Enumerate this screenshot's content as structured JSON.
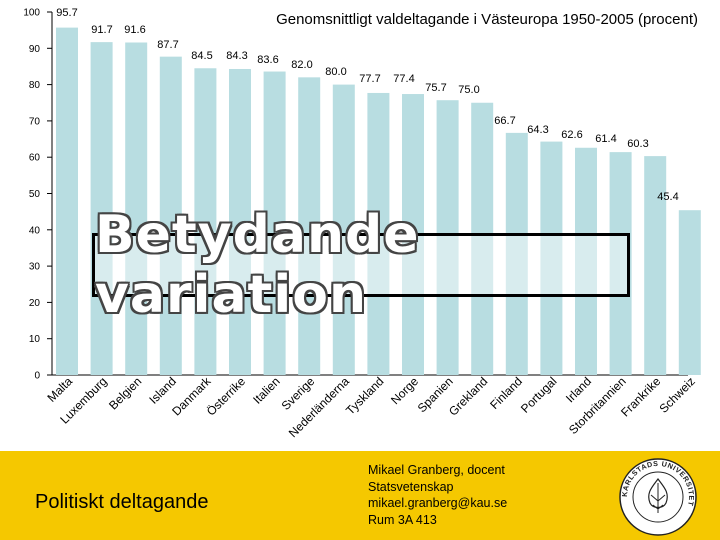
{
  "chart_data": {
    "type": "bar",
    "title": "Genomsnittligt valdeltagande i Västeuropa 1950-2005 (procent)",
    "xlabel": "",
    "ylabel": "",
    "ylim": [
      0,
      100
    ],
    "yticks": [
      0,
      10,
      20,
      30,
      40,
      50,
      60,
      70,
      80,
      90,
      100
    ],
    "grid": false,
    "bar_color": "#b8dde1",
    "categories": [
      "Malta",
      "Luxemburg",
      "Belgien",
      "Island",
      "Danmark",
      "Österrike",
      "Italien",
      "Sverige",
      "Nederländerna",
      "Tyskland",
      "Norge",
      "Spanien",
      "Grekland",
      "Finland",
      "Portugal",
      "Irland",
      "Storbritannien",
      "Frankrike",
      "Schweiz"
    ],
    "values": [
      95.7,
      91.7,
      91.6,
      87.7,
      84.5,
      84.3,
      83.6,
      82.0,
      80.0,
      77.7,
      77.4,
      75.7,
      75.0,
      66.7,
      64.3,
      62.6,
      61.4,
      60.3,
      45.4
    ],
    "value_labels": [
      "95.7",
      "91.7",
      "91.6",
      "87.7",
      "84.5",
      "84.3",
      "83.6",
      "82.0",
      "80.0",
      "77.7",
      "77.4",
      "75.7",
      "75.0",
      "66.7",
      "64.3",
      "62.6",
      "61.4",
      "60.3",
      "45.4"
    ]
  },
  "callout": {
    "text": "Betydande variation"
  },
  "footer": {
    "title": "Politiskt deltagande",
    "contact": [
      "Mikael Granberg, docent",
      "Statsvetenskap",
      "mikael.granberg@kau.se",
      "Rum 3A 413"
    ],
    "logo_text": "KARLSTADS UNIVERSITET",
    "background_color": "#f5c800"
  }
}
